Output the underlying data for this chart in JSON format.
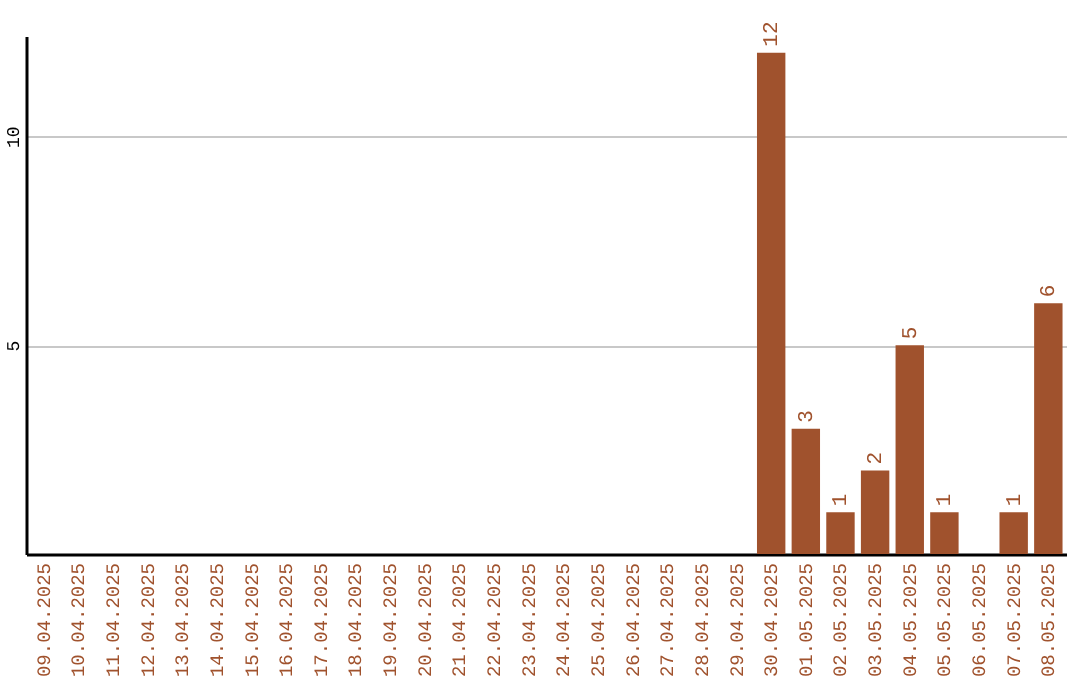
{
  "chart_data": {
    "type": "bar",
    "categories": [
      "09.04.2025",
      "10.04.2025",
      "11.04.2025",
      "12.04.2025",
      "13.04.2025",
      "14.04.2025",
      "15.04.2025",
      "16.04.2025",
      "17.04.2025",
      "18.04.2025",
      "19.04.2025",
      "20.04.2025",
      "21.04.2025",
      "22.04.2025",
      "23.04.2025",
      "24.04.2025",
      "25.04.2025",
      "26.04.2025",
      "27.04.2025",
      "28.04.2025",
      "29.04.2025",
      "30.04.2025",
      "01.05.2025",
      "02.05.2025",
      "03.05.2025",
      "04.05.2025",
      "05.05.2025",
      "06.05.2025",
      "07.05.2025",
      "08.05.2025"
    ],
    "values": [
      0,
      0,
      0,
      0,
      0,
      0,
      0,
      0,
      0,
      0,
      0,
      0,
      0,
      0,
      0,
      0,
      0,
      0,
      0,
      0,
      0,
      12,
      3,
      1,
      2,
      5,
      1,
      0,
      1,
      6
    ],
    "value_labels": [
      null,
      null,
      null,
      null,
      null,
      null,
      null,
      null,
      null,
      null,
      null,
      null,
      null,
      null,
      null,
      null,
      null,
      null,
      null,
      null,
      null,
      "12",
      "3",
      "1",
      "2",
      "5",
      "1",
      null,
      "1",
      "6"
    ],
    "color": "#a0522d",
    "ylim": [
      0,
      12.4
    ],
    "yticks": [
      5,
      10
    ],
    "grid": "y"
  }
}
